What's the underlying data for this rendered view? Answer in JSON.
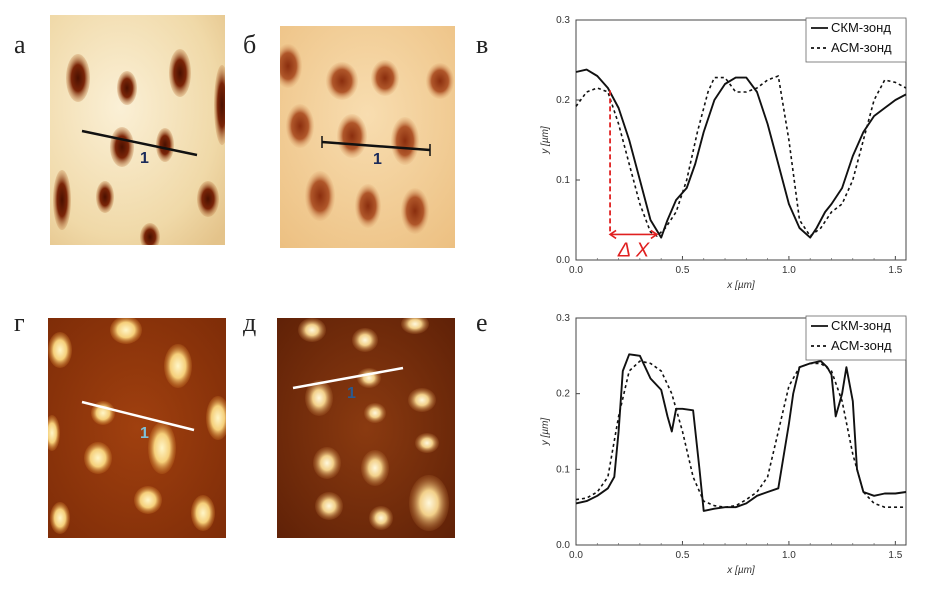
{
  "panels": {
    "a": {
      "letter": "а",
      "profile_label": "1"
    },
    "b": {
      "letter": "б",
      "profile_label": "1"
    },
    "v": {
      "letter": "в"
    },
    "g": {
      "letter": "г",
      "profile_label": "1"
    },
    "d": {
      "letter": "д",
      "profile_label": "1"
    },
    "e": {
      "letter": "е"
    }
  },
  "colors": {
    "topo_light": "#f6e8c8",
    "topo_dark": "#6e1b08",
    "mag_dark": "#7a2a08",
    "mag_light": "#fff0b0",
    "delta_x": "#e02020"
  },
  "chart_data": [
    {
      "type": "line",
      "panel": "в",
      "xlabel": "x [µm]",
      "ylabel": "y [µm]",
      "xlim": [
        0,
        1.55
      ],
      "ylim": [
        0,
        0.3
      ],
      "xticks": [
        "0.0",
        "0.5",
        "1.0",
        "1.5"
      ],
      "yticks": [
        "0.0",
        "0.1",
        "0.2",
        "0.3"
      ],
      "annotation": "Δ X",
      "annotation_range": [
        0.16,
        0.38
      ],
      "legend": "top-right",
      "series": [
        {
          "name": "СКМ-зонд",
          "style": "solid",
          "x": [
            0.0,
            0.05,
            0.1,
            0.15,
            0.2,
            0.25,
            0.3,
            0.35,
            0.4,
            0.43,
            0.47,
            0.52,
            0.56,
            0.6,
            0.65,
            0.7,
            0.75,
            0.8,
            0.85,
            0.9,
            0.95,
            1.0,
            1.05,
            1.1,
            1.13,
            1.17,
            1.2,
            1.25,
            1.3,
            1.35,
            1.4,
            1.45,
            1.5,
            1.55
          ],
          "y": [
            0.235,
            0.238,
            0.23,
            0.215,
            0.19,
            0.15,
            0.1,
            0.05,
            0.028,
            0.05,
            0.075,
            0.09,
            0.12,
            0.16,
            0.2,
            0.22,
            0.228,
            0.228,
            0.21,
            0.17,
            0.12,
            0.07,
            0.04,
            0.028,
            0.04,
            0.06,
            0.07,
            0.09,
            0.13,
            0.16,
            0.18,
            0.19,
            0.2,
            0.207
          ]
        },
        {
          "name": "АСМ-зонд",
          "style": "dashed",
          "x": [
            0.0,
            0.05,
            0.1,
            0.15,
            0.2,
            0.25,
            0.3,
            0.35,
            0.38,
            0.42,
            0.47,
            0.52,
            0.57,
            0.62,
            0.65,
            0.7,
            0.75,
            0.8,
            0.85,
            0.9,
            0.95,
            1.0,
            1.05,
            1.1,
            1.15,
            1.2,
            1.25,
            1.3,
            1.35,
            1.4,
            1.45,
            1.5,
            1.55
          ],
          "y": [
            0.192,
            0.21,
            0.215,
            0.21,
            0.17,
            0.12,
            0.07,
            0.035,
            0.03,
            0.04,
            0.06,
            0.1,
            0.16,
            0.21,
            0.228,
            0.228,
            0.21,
            0.21,
            0.215,
            0.225,
            0.23,
            0.15,
            0.05,
            0.03,
            0.04,
            0.06,
            0.07,
            0.1,
            0.15,
            0.2,
            0.225,
            0.222,
            0.215
          ]
        }
      ]
    },
    {
      "type": "line",
      "panel": "е",
      "xlabel": "x [µm]",
      "ylabel": "y [µm]",
      "xlim": [
        0,
        1.55
      ],
      "ylim": [
        0,
        0.3
      ],
      "xticks": [
        "0.0",
        "0.5",
        "1.0",
        "1.5"
      ],
      "yticks": [
        "0.0",
        "0.1",
        "0.2",
        "0.3"
      ],
      "legend": "top-right",
      "series": [
        {
          "name": "СКМ-зонд",
          "style": "solid",
          "x": [
            0.0,
            0.05,
            0.1,
            0.15,
            0.18,
            0.2,
            0.22,
            0.25,
            0.3,
            0.35,
            0.4,
            0.43,
            0.45,
            0.47,
            0.5,
            0.55,
            0.58,
            0.6,
            0.65,
            0.7,
            0.75,
            0.8,
            0.85,
            0.9,
            0.95,
            1.0,
            1.02,
            1.05,
            1.1,
            1.15,
            1.18,
            1.2,
            1.22,
            1.25,
            1.27,
            1.3,
            1.32,
            1.35,
            1.4,
            1.45,
            1.5,
            1.55
          ],
          "y": [
            0.055,
            0.058,
            0.065,
            0.075,
            0.09,
            0.15,
            0.23,
            0.252,
            0.25,
            0.22,
            0.205,
            0.17,
            0.15,
            0.18,
            0.18,
            0.178,
            0.1,
            0.045,
            0.048,
            0.05,
            0.05,
            0.055,
            0.065,
            0.07,
            0.075,
            0.16,
            0.2,
            0.235,
            0.24,
            0.243,
            0.235,
            0.225,
            0.17,
            0.2,
            0.235,
            0.19,
            0.1,
            0.07,
            0.065,
            0.068,
            0.068,
            0.07
          ]
        },
        {
          "name": "АСМ-зонд",
          "style": "dashed",
          "x": [
            0.0,
            0.05,
            0.1,
            0.15,
            0.2,
            0.25,
            0.3,
            0.35,
            0.4,
            0.45,
            0.5,
            0.55,
            0.6,
            0.65,
            0.7,
            0.75,
            0.8,
            0.85,
            0.9,
            0.95,
            1.0,
            1.05,
            1.1,
            1.15,
            1.2,
            1.25,
            1.3,
            1.35,
            1.4,
            1.45,
            1.5,
            1.55
          ],
          "y": [
            0.06,
            0.062,
            0.07,
            0.09,
            0.17,
            0.23,
            0.243,
            0.24,
            0.23,
            0.2,
            0.15,
            0.09,
            0.058,
            0.052,
            0.05,
            0.052,
            0.06,
            0.07,
            0.09,
            0.15,
            0.21,
            0.235,
            0.24,
            0.24,
            0.23,
            0.19,
            0.12,
            0.07,
            0.055,
            0.05,
            0.05,
            0.05
          ]
        }
      ]
    }
  ]
}
